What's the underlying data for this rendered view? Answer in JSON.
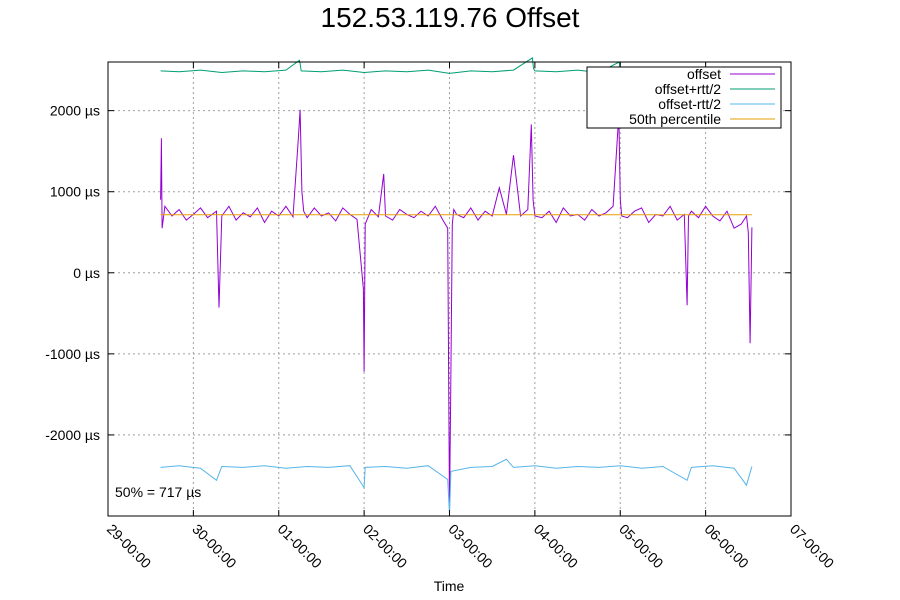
{
  "chart_data": {
    "type": "line",
    "title": "152.53.119.76 Offset",
    "xlabel": "Time",
    "ylabel": "",
    "x_unit": "hours",
    "xlim": [
      0,
      192
    ],
    "ylim": [
      -3000,
      2600
    ],
    "grid": true,
    "legend_position": "top-right",
    "x_ticks": [
      {
        "value": 0,
        "label": "29-00:00"
      },
      {
        "value": 24,
        "label": "30-00:00"
      },
      {
        "value": 48,
        "label": "01-00:00"
      },
      {
        "value": 72,
        "label": "02-00:00"
      },
      {
        "value": 96,
        "label": "03-00:00"
      },
      {
        "value": 120,
        "label": "04-00:00"
      },
      {
        "value": 144,
        "label": "05-00:00"
      },
      {
        "value": 168,
        "label": "06-00:00"
      },
      {
        "value": 192,
        "label": "07-00:00"
      }
    ],
    "y_ticks": [
      {
        "value": 2000,
        "label": "2000 µs"
      },
      {
        "value": 1000,
        "label": "1000 µs"
      },
      {
        "value": 0,
        "label": "0 µs"
      },
      {
        "value": -1000,
        "label": "-1000 µs"
      },
      {
        "value": -2000,
        "label": "-2000 µs"
      }
    ],
    "series": [
      {
        "name": "offset",
        "color": "#9400d3",
        "x": [
          14.8,
          15.0,
          15.2,
          16.0,
          18.0,
          20.0,
          22.0,
          24.0,
          26.0,
          28.0,
          30.5,
          31.2,
          32.0,
          34.0,
          36.0,
          38.0,
          40.0,
          42.0,
          44.0,
          46.0,
          48.0,
          50.0,
          52.0,
          53.5,
          54.0,
          54.5,
          55.0,
          56.0,
          58.0,
          60.0,
          62.0,
          64.0,
          66.0,
          68.0,
          70.0,
          71.8,
          72.0,
          72.3,
          74.0,
          76.0,
          77.5,
          78.0,
          80.0,
          82.0,
          84.0,
          86.0,
          88.0,
          90.0,
          92.0,
          94.0,
          95.5,
          96.0,
          96.3,
          96.8,
          97.2,
          98.0,
          100.0,
          102.0,
          104.0,
          106.0,
          108.0,
          110.0,
          112.0,
          114.0,
          116.0,
          118.0,
          119.0,
          119.5,
          120.0,
          122.0,
          124.0,
          126.0,
          128.0,
          130.0,
          132.0,
          134.0,
          136.0,
          138.0,
          140.0,
          142.0,
          143.6,
          144.0,
          144.4,
          146.0,
          148.0,
          150.0,
          152.0,
          154.0,
          156.0,
          158.0,
          160.0,
          162.0,
          162.8,
          163.2,
          164.0,
          166.0,
          168.0,
          170.0,
          172.0,
          174.0,
          176.0,
          178.0,
          179.5,
          180.0,
          180.5,
          181.0
        ],
        "y": [
          900,
          1660,
          550,
          820,
          700,
          780,
          650,
          720,
          800,
          680,
          760,
          -430,
          700,
          820,
          650,
          740,
          690,
          800,
          620,
          760,
          700,
          820,
          690,
          1650,
          2010,
          1000,
          760,
          680,
          800,
          700,
          740,
          640,
          800,
          720,
          660,
          -200,
          -1220,
          600,
          780,
          690,
          1220,
          700,
          650,
          780,
          720,
          680,
          760,
          700,
          820,
          660,
          550,
          -2900,
          -1620,
          600,
          780,
          720,
          680,
          800,
          650,
          760,
          700,
          1050,
          720,
          1450,
          700,
          780,
          1830,
          900,
          700,
          680,
          760,
          620,
          800,
          700,
          720,
          650,
          780,
          700,
          740,
          820,
          1950,
          900,
          700,
          680,
          760,
          800,
          620,
          720,
          700,
          820,
          650,
          720,
          -400,
          700,
          760,
          680,
          820,
          700,
          640,
          760,
          550,
          600,
          700,
          500,
          -870,
          560
        ]
      },
      {
        "name": "offset+rtt/2",
        "color": "#009e73",
        "x": [
          14.8,
          20.0,
          26.0,
          32.0,
          38.0,
          44.0,
          50.0,
          53.8,
          54.0,
          54.3,
          60.0,
          66.0,
          72.0,
          78.0,
          84.0,
          90.0,
          96.0,
          102.0,
          108.0,
          114.0,
          119.3,
          119.6,
          120.0,
          126.0,
          132.0,
          138.0,
          143.7,
          144.0,
          150.0,
          156.0,
          162.0,
          168.0,
          174.0,
          181.0
        ],
        "y": [
          2490,
          2480,
          2500,
          2470,
          2490,
          2480,
          2500,
          2620,
          2580,
          2490,
          2480,
          2500,
          2470,
          2490,
          2480,
          2500,
          2460,
          2490,
          2480,
          2500,
          2650,
          2520,
          2490,
          2480,
          2500,
          2470,
          2600,
          2490,
          2480,
          2500,
          2470,
          2490,
          2480,
          2500
        ]
      },
      {
        "name": "offset-rtt/2",
        "color": "#56b4e9",
        "x": [
          14.8,
          20.0,
          26.0,
          30.5,
          32.0,
          38.0,
          44.0,
          50.0,
          56.0,
          62.0,
          68.0,
          72.0,
          72.3,
          78.0,
          84.0,
          90.0,
          95.5,
          96.0,
          96.4,
          102.0,
          108.0,
          112.0,
          114.0,
          120.0,
          126.0,
          132.0,
          138.0,
          144.0,
          150.0,
          156.0,
          162.8,
          164.0,
          170.0,
          176.0,
          179.5,
          181.0
        ],
        "y": [
          -2400,
          -2380,
          -2410,
          -2560,
          -2390,
          -2400,
          -2380,
          -2410,
          -2390,
          -2400,
          -2380,
          -2650,
          -2400,
          -2390,
          -2410,
          -2380,
          -2550,
          -2980,
          -2450,
          -2400,
          -2390,
          -2300,
          -2400,
          -2380,
          -2410,
          -2390,
          -2400,
          -2380,
          -2410,
          -2390,
          -2560,
          -2400,
          -2380,
          -2410,
          -2620,
          -2390
        ]
      },
      {
        "name": "50th percentile",
        "color": "#e69f00",
        "x": [
          14.8,
          181.0
        ],
        "y": [
          717,
          717
        ]
      }
    ],
    "annotation": "50% = 717 µs"
  }
}
